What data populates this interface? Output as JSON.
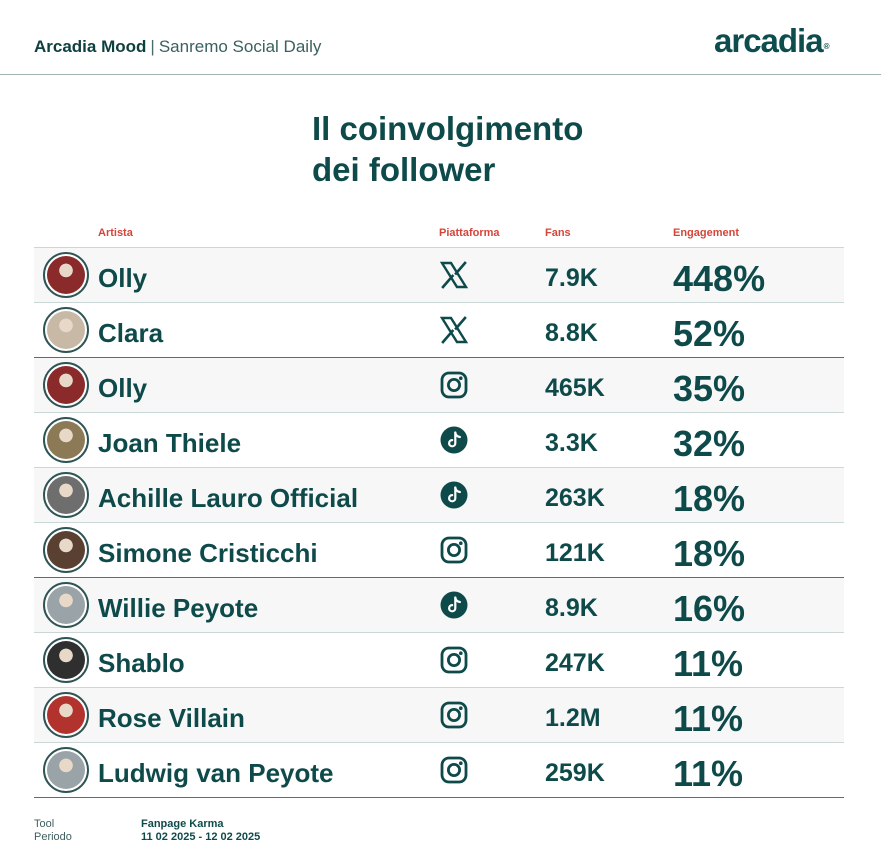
{
  "header": {
    "brand_bold": "Arcadia Mood",
    "separator": "|",
    "brand_sub": "Sanremo Social Daily",
    "logo_text": "arcadia",
    "logo_mark": "®"
  },
  "title": {
    "line1": "Il coinvolgimento",
    "line2": "dei follower"
  },
  "columns": {
    "artist": "Artista",
    "platform": "Piattaforma",
    "fans": "Fans",
    "engagement": "Engagement"
  },
  "rows": [
    {
      "artist": "Olly",
      "platform": "x-icon",
      "fans": "7.9K",
      "engagement": "448%",
      "avatar_color": "#8a2a2a"
    },
    {
      "artist": "Clara",
      "platform": "x-icon",
      "fans": "8.8K",
      "engagement": "52%",
      "avatar_color": "#c7b9a6"
    },
    {
      "artist": "Olly",
      "platform": "instagram-icon",
      "fans": "465K",
      "engagement": "35%",
      "avatar_color": "#8a2a2a"
    },
    {
      "artist": "Joan Thiele",
      "platform": "tiktok-icon",
      "fans": "3.3K",
      "engagement": "32%",
      "avatar_color": "#8b7a55"
    },
    {
      "artist": "Achille Lauro Official",
      "platform": "tiktok-icon",
      "fans": "263K",
      "engagement": "18%",
      "avatar_color": "#6e6e6e"
    },
    {
      "artist": "Simone Cristicchi",
      "platform": "instagram-icon",
      "fans": "121K",
      "engagement": "18%",
      "avatar_color": "#5a4030"
    },
    {
      "artist": "Willie Peyote",
      "platform": "tiktok-icon",
      "fans": "8.9K",
      "engagement": "16%",
      "avatar_color": "#9aa3a8"
    },
    {
      "artist": "Shablo",
      "platform": "instagram-icon",
      "fans": "247K",
      "engagement": "11%",
      "avatar_color": "#2f2f2f"
    },
    {
      "artist": "Rose Villain",
      "platform": "instagram-icon",
      "fans": "1.2M",
      "engagement": "11%",
      "avatar_color": "#b2322e"
    },
    {
      "artist": "Ludwig van Peyote",
      "platform": "instagram-icon",
      "fans": "259K",
      "engagement": "11%",
      "avatar_color": "#9aa3a8"
    }
  ],
  "footer": {
    "tool_label": "Tool",
    "tool_value": "Fanpage Karma",
    "period_label": "Periodo",
    "period_value": "11 02 2025 - 12 02 2025"
  },
  "colors": {
    "primary": "#0f4a4a",
    "header_accent": "#d6443a",
    "row_alt": "#f7f7f7"
  }
}
